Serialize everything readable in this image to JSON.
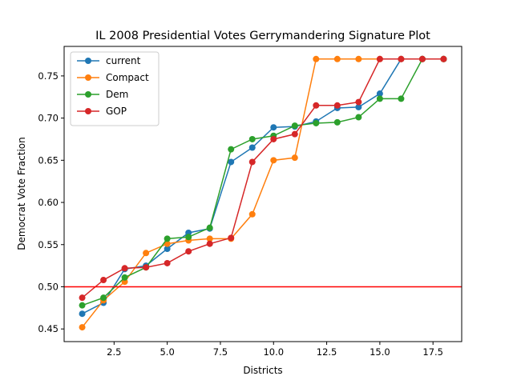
{
  "chart_data": {
    "type": "line",
    "title": "IL 2008 Presidential Votes Gerrymandering Signature Plot",
    "xlabel": "Districts",
    "ylabel": "Democrat Vote Fraction",
    "xlim": [
      0.15,
      18.85
    ],
    "ylim": [
      0.435,
      0.785
    ],
    "x_ticks": [
      2.5,
      5.0,
      7.5,
      10.0,
      12.5,
      15.0,
      17.5
    ],
    "x_tick_labels": [
      "2.5",
      "5.0",
      "7.5",
      "10.0",
      "12.5",
      "15.0",
      "17.5"
    ],
    "y_ticks": [
      0.45,
      0.5,
      0.55,
      0.6,
      0.65,
      0.7,
      0.75
    ],
    "y_tick_labels": [
      "0.45",
      "0.50",
      "0.55",
      "0.60",
      "0.65",
      "0.70",
      "0.75"
    ],
    "legend_position": "top-left",
    "grid": false,
    "reference_line": {
      "y": 0.5,
      "color": "#ff0000"
    },
    "x": [
      1,
      2,
      3,
      4,
      5,
      6,
      7,
      8,
      9,
      10,
      11,
      12,
      13,
      14,
      15,
      16,
      17,
      18
    ],
    "series": [
      {
        "name": "current",
        "color": "#1f77b4",
        "values": [
          0.468,
          0.481,
          0.521,
          0.525,
          0.545,
          0.564,
          0.569,
          0.648,
          0.665,
          0.689,
          0.69,
          0.696,
          0.712,
          0.713,
          0.729,
          0.77,
          0.77,
          0.77
        ]
      },
      {
        "name": "Compact",
        "color": "#ff7f0e",
        "values": [
          0.452,
          0.484,
          0.506,
          0.54,
          0.551,
          0.555,
          0.557,
          0.557,
          0.586,
          0.65,
          0.653,
          0.77,
          0.77,
          0.77,
          0.77,
          0.77,
          0.77,
          0.77
        ]
      },
      {
        "name": "Dem",
        "color": "#2ca02c",
        "values": [
          0.478,
          0.487,
          0.511,
          0.523,
          0.557,
          0.559,
          0.57,
          0.663,
          0.675,
          0.679,
          0.691,
          0.694,
          0.695,
          0.701,
          0.723,
          0.723,
          0.77,
          0.77
        ]
      },
      {
        "name": "GOP",
        "color": "#d62728",
        "values": [
          0.487,
          0.508,
          0.522,
          0.523,
          0.528,
          0.542,
          0.551,
          0.558,
          0.648,
          0.675,
          0.681,
          0.715,
          0.715,
          0.719,
          0.77,
          0.77,
          0.77,
          0.77
        ]
      }
    ]
  }
}
